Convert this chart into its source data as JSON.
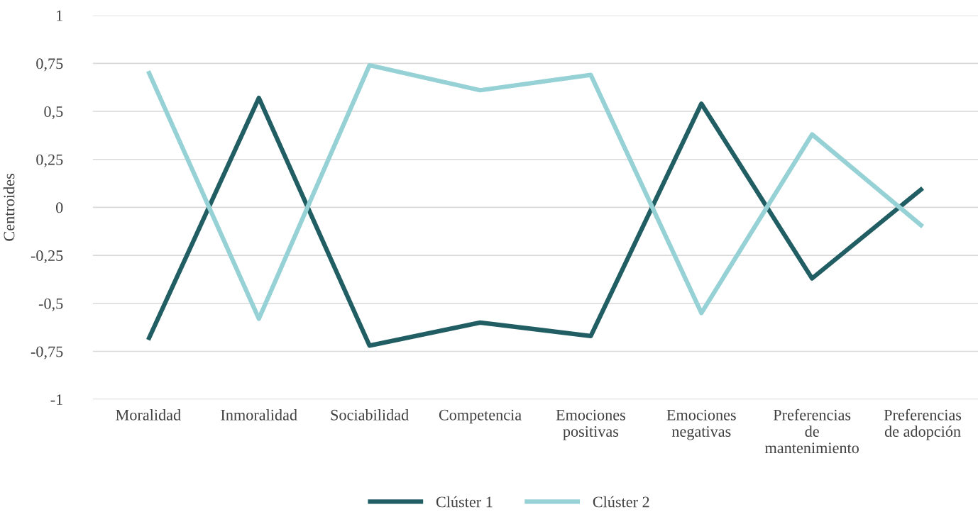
{
  "chart_data": {
    "type": "line",
    "ylabel": "Centroides",
    "categories": [
      "Moralidad",
      "Inmoralidad",
      "Sociabilidad",
      "Competencia",
      "Emociones positivas",
      "Emociones negativas",
      "Preferencias de mantenimiento",
      "Preferencias de adopción"
    ],
    "series": [
      {
        "name": "Clúster 1",
        "color": "#215e63",
        "values": [
          -0.69,
          0.57,
          -0.72,
          -0.6,
          -0.67,
          0.54,
          -0.37,
          0.1
        ]
      },
      {
        "name": "Clúster 2",
        "color": "#96d1d6",
        "values": [
          0.71,
          -0.58,
          0.74,
          0.61,
          0.69,
          -0.55,
          0.38,
          -0.1
        ]
      }
    ],
    "ylim": [
      -1,
      1
    ],
    "yticks": [
      -1,
      {
        "value": -0.75,
        "label": "-0,75"
      },
      {
        "value": -0.5,
        "label": "-0,5"
      },
      {
        "value": -0.25,
        "label": "-0,25"
      },
      0,
      {
        "value": 0.25,
        "label": "0,25"
      },
      {
        "value": 0.5,
        "label": "0,5"
      },
      {
        "value": 0.75,
        "label": "0,75"
      },
      1
    ],
    "grid": "y",
    "legend": "bottom",
    "marker": "none",
    "line_style": "solid"
  }
}
